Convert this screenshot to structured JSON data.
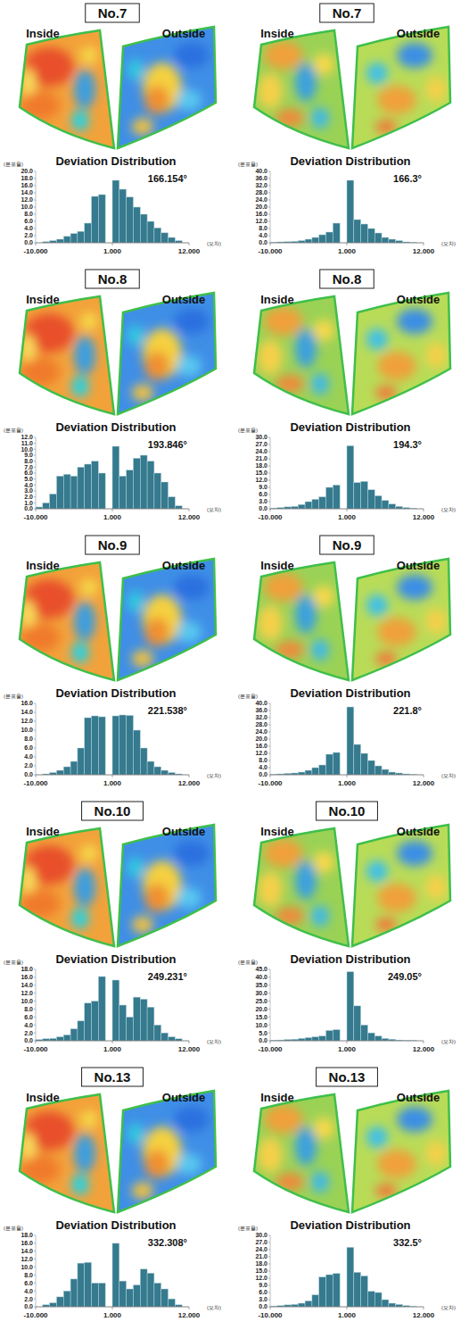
{
  "chart_data": [
    {
      "type": "histogram",
      "title": "No.7",
      "subtitle": "Deviation Distribution",
      "annotations": [
        "Inside",
        "Outside",
        "166.154°"
      ],
      "x_label": "(오차)",
      "y_label": "(분포율)",
      "color": "#357a8e",
      "grid": false,
      "bins": [
        -10,
        -9,
        -8,
        -7,
        -6,
        -5,
        -4,
        -3,
        -2,
        -1,
        0,
        1,
        2,
        3,
        4,
        5,
        6,
        7,
        8,
        9,
        10,
        11,
        12
      ],
      "values": [
        0,
        0.3,
        0.6,
        1,
        1.8,
        2.6,
        3.2,
        5.5,
        13,
        13.5,
        0,
        17.5,
        15,
        12.8,
        10,
        8,
        6,
        4.2,
        2.8,
        1.5,
        0.6,
        0
      ],
      "xlim": [
        -10,
        12
      ],
      "xticks": [
        {
          "value": -10,
          "label": "-10.000"
        },
        {
          "value": 1,
          "label": "1.000"
        },
        {
          "value": 12,
          "label": "12.000"
        }
      ],
      "ylim": [
        0,
        20
      ],
      "yticks": [
        {
          "value": 0,
          "label": "0.0"
        },
        {
          "value": 2,
          "label": "2.0"
        },
        {
          "value": 4,
          "label": "4.0"
        },
        {
          "value": 6,
          "label": "6.0"
        },
        {
          "value": 8,
          "label": "8.0"
        },
        {
          "value": 10,
          "label": "10.0"
        },
        {
          "value": 12,
          "label": "12.0"
        },
        {
          "value": 14,
          "label": "14.0"
        },
        {
          "value": 16,
          "label": "16.0"
        },
        {
          "value": 18,
          "label": "18.0"
        },
        {
          "value": 20,
          "label": "20.0"
        }
      ]
    },
    {
      "type": "histogram",
      "title": "No.7",
      "subtitle": "Deviation Distribution",
      "annotations": [
        "Inside",
        "Outside",
        "166.3°"
      ],
      "x_label": "(오차)",
      "y_label": "(분포율)",
      "color": "#357a8e",
      "grid": false,
      "bins": [
        -10,
        -9,
        -8,
        -7,
        -6,
        -5,
        -4,
        -3,
        -2,
        -1,
        0,
        1,
        2,
        3,
        4,
        5,
        6,
        7,
        8,
        9,
        10,
        11,
        12
      ],
      "values": [
        0.3,
        0.5,
        0.6,
        0.8,
        1.2,
        2,
        3,
        4.5,
        6,
        11,
        0,
        35,
        13,
        10.5,
        8,
        5.5,
        3,
        2,
        1.2,
        0.5,
        0.2,
        0
      ],
      "xlim": [
        -10,
        12
      ],
      "xticks": [
        {
          "value": -10,
          "label": "-10.000"
        },
        {
          "value": 1,
          "label": "1.000"
        },
        {
          "value": 12,
          "label": "12.000"
        }
      ],
      "ylim": [
        0,
        40
      ],
      "yticks": [
        {
          "value": 0,
          "label": "0.0"
        },
        {
          "value": 4,
          "label": "4.0"
        },
        {
          "value": 8,
          "label": "8.0"
        },
        {
          "value": 12,
          "label": "12.0"
        },
        {
          "value": 16,
          "label": "16.0"
        },
        {
          "value": 20,
          "label": "20.0"
        },
        {
          "value": 24,
          "label": "24.0"
        },
        {
          "value": 28,
          "label": "28.0"
        },
        {
          "value": 32,
          "label": "32.0"
        },
        {
          "value": 36,
          "label": "36.0"
        },
        {
          "value": 40,
          "label": "40.0"
        }
      ]
    },
    {
      "type": "histogram",
      "title": "No.8",
      "subtitle": "Deviation Distribution",
      "annotations": [
        "Inside",
        "Outside",
        "193.846°"
      ],
      "x_label": "(오차)",
      "y_label": "(분포율)",
      "color": "#357a8e",
      "grid": false,
      "bins": [
        -10,
        -9,
        -8,
        -7,
        -6,
        -5,
        -4,
        -3,
        -2,
        -1,
        0,
        1,
        2,
        3,
        4,
        5,
        6,
        7,
        8,
        9,
        10,
        11,
        12
      ],
      "values": [
        0.3,
        1,
        2.5,
        5.5,
        5.8,
        5.5,
        7,
        7.5,
        8,
        6,
        0,
        10.5,
        5.5,
        6.5,
        8.5,
        9,
        8,
        6,
        4.5,
        2,
        0.5,
        0
      ],
      "xlim": [
        -10,
        12
      ],
      "xticks": [
        {
          "value": -10,
          "label": "-10.000"
        },
        {
          "value": 1,
          "label": "1.000"
        },
        {
          "value": 12,
          "label": "12.000"
        }
      ],
      "ylim": [
        0,
        12
      ],
      "yticks": [
        {
          "value": 0,
          "label": "0.0"
        },
        {
          "value": 1,
          "label": "1.0"
        },
        {
          "value": 2,
          "label": "2.0"
        },
        {
          "value": 3,
          "label": "3.0"
        },
        {
          "value": 4,
          "label": "4.0"
        },
        {
          "value": 5,
          "label": "5.0"
        },
        {
          "value": 6,
          "label": "6.0"
        },
        {
          "value": 7,
          "label": "7.0"
        },
        {
          "value": 8,
          "label": "8.0"
        },
        {
          "value": 9,
          "label": "9.0"
        },
        {
          "value": 10,
          "label": "10.0"
        },
        {
          "value": 11,
          "label": "11.0"
        },
        {
          "value": 12,
          "label": "12.0"
        }
      ]
    },
    {
      "type": "histogram",
      "title": "No.8",
      "subtitle": "Deviation Distribution",
      "annotations": [
        "Inside",
        "Outside",
        "194.3°"
      ],
      "x_label": "(오차)",
      "y_label": "(분포율)",
      "color": "#357a8e",
      "grid": false,
      "bins": [
        -10,
        -9,
        -8,
        -7,
        -6,
        -5,
        -4,
        -3,
        -2,
        -1,
        0,
        1,
        2,
        3,
        4,
        5,
        6,
        7,
        8,
        9,
        10,
        11,
        12
      ],
      "values": [
        0.3,
        0.5,
        0.8,
        1,
        1.8,
        3,
        4,
        5,
        9,
        10,
        0,
        26.5,
        11,
        11.5,
        8,
        5.5,
        3.5,
        2,
        1,
        0.5,
        0.2,
        0
      ],
      "xlim": [
        -10,
        12
      ],
      "xticks": [
        {
          "value": -10,
          "label": "-10.000"
        },
        {
          "value": 1,
          "label": "1.000"
        },
        {
          "value": 12,
          "label": "12.000"
        }
      ],
      "ylim": [
        0,
        30
      ],
      "yticks": [
        {
          "value": 0,
          "label": "0.0"
        },
        {
          "value": 3,
          "label": "3.0"
        },
        {
          "value": 6,
          "label": "6.0"
        },
        {
          "value": 9,
          "label": "9.0"
        },
        {
          "value": 12,
          "label": "12.0"
        },
        {
          "value": 15,
          "label": "15.0"
        },
        {
          "value": 18,
          "label": "18.0"
        },
        {
          "value": 21,
          "label": "21.0"
        },
        {
          "value": 24,
          "label": "24.0"
        },
        {
          "value": 27,
          "label": "27.0"
        },
        {
          "value": 30,
          "label": "30.0"
        }
      ]
    },
    {
      "type": "histogram",
      "title": "No.9",
      "subtitle": "Deviation Distribution",
      "annotations": [
        "Inside",
        "Outside",
        "221.538°"
      ],
      "x_label": "(오차)",
      "y_label": "(분포율)",
      "color": "#357a8e",
      "grid": false,
      "bins": [
        -10,
        -9,
        -8,
        -7,
        -6,
        -5,
        -4,
        -3,
        -2,
        -1,
        0,
        1,
        2,
        3,
        4,
        5,
        6,
        7,
        8,
        9,
        10,
        11,
        12
      ],
      "values": [
        0,
        0.2,
        0.5,
        1,
        1.8,
        3,
        6,
        12.8,
        13.2,
        13,
        0,
        13.2,
        13.4,
        13.3,
        10,
        6,
        3,
        1.8,
        1,
        0.5,
        0.2,
        0
      ],
      "xlim": [
        -10,
        12
      ],
      "xticks": [
        {
          "value": -10,
          "label": "-10.000"
        },
        {
          "value": 1,
          "label": "1.000"
        },
        {
          "value": 12,
          "label": "12.000"
        }
      ],
      "ylim": [
        0,
        16
      ],
      "yticks": [
        {
          "value": 0,
          "label": "0.0"
        },
        {
          "value": 2,
          "label": "2.0"
        },
        {
          "value": 4,
          "label": "4.0"
        },
        {
          "value": 6,
          "label": "6.0"
        },
        {
          "value": 8,
          "label": "8.0"
        },
        {
          "value": 10,
          "label": "10.0"
        },
        {
          "value": 12,
          "label": "12.0"
        },
        {
          "value": 14,
          "label": "14.0"
        },
        {
          "value": 16,
          "label": "16.0"
        }
      ]
    },
    {
      "type": "histogram",
      "title": "No.9",
      "subtitle": "Deviation Distribution",
      "annotations": [
        "Inside",
        "Outside",
        "221.8°"
      ],
      "x_label": "(오차)",
      "y_label": "(분포율)",
      "color": "#357a8e",
      "grid": false,
      "bins": [
        -10,
        -9,
        -8,
        -7,
        -6,
        -5,
        -4,
        -3,
        -2,
        -1,
        0,
        1,
        2,
        3,
        4,
        5,
        6,
        7,
        8,
        9,
        10,
        11,
        12
      ],
      "values": [
        0.3,
        0.5,
        0.8,
        1,
        1.5,
        2.5,
        4,
        5.5,
        11.5,
        12.5,
        0,
        38,
        17,
        12,
        8,
        5,
        3,
        1.5,
        1,
        0.5,
        0.2,
        0
      ],
      "xlim": [
        -10,
        12
      ],
      "xticks": [
        {
          "value": -10,
          "label": "-10.000"
        },
        {
          "value": 1,
          "label": "1.000"
        },
        {
          "value": 12,
          "label": "12.000"
        }
      ],
      "ylim": [
        0,
        40
      ],
      "yticks": [
        {
          "value": 0,
          "label": "0.0"
        },
        {
          "value": 4,
          "label": "4.0"
        },
        {
          "value": 8,
          "label": "8.0"
        },
        {
          "value": 12,
          "label": "12.0"
        },
        {
          "value": 16,
          "label": "16.0"
        },
        {
          "value": 20,
          "label": "20.0"
        },
        {
          "value": 24,
          "label": "24.0"
        },
        {
          "value": 28,
          "label": "28.0"
        },
        {
          "value": 32,
          "label": "32.0"
        },
        {
          "value": 36,
          "label": "36.0"
        },
        {
          "value": 40,
          "label": "40.0"
        }
      ]
    },
    {
      "type": "histogram",
      "title": "No.10",
      "subtitle": "Deviation Distribution",
      "annotations": [
        "Inside",
        "Outside",
        "249.231°"
      ],
      "x_label": "(오차)",
      "y_label": "(분포율)",
      "color": "#357a8e",
      "grid": false,
      "bins": [
        -10,
        -9,
        -8,
        -7,
        -6,
        -5,
        -4,
        -3,
        -2,
        -1,
        0,
        1,
        2,
        3,
        4,
        5,
        6,
        7,
        8,
        9,
        10,
        11,
        12
      ],
      "values": [
        0.3,
        0.5,
        0.6,
        1,
        1.5,
        3,
        5,
        9.5,
        10,
        16.2,
        0,
        15.3,
        9,
        6,
        11,
        10.5,
        8.5,
        4,
        2,
        1,
        0.5,
        0
      ],
      "xlim": [
        -10,
        12
      ],
      "xticks": [
        {
          "value": -10,
          "label": "-10.000"
        },
        {
          "value": 1,
          "label": "1.000"
        },
        {
          "value": 12,
          "label": "12.000"
        }
      ],
      "ylim": [
        0,
        18
      ],
      "yticks": [
        {
          "value": 0,
          "label": "0.0"
        },
        {
          "value": 2,
          "label": "2.0"
        },
        {
          "value": 4,
          "label": "4.0"
        },
        {
          "value": 6,
          "label": "6.0"
        },
        {
          "value": 8,
          "label": "8.0"
        },
        {
          "value": 10,
          "label": "10.0"
        },
        {
          "value": 12,
          "label": "12.0"
        },
        {
          "value": 14,
          "label": "14.0"
        },
        {
          "value": 16,
          "label": "16.0"
        },
        {
          "value": 18,
          "label": "18.0"
        }
      ]
    },
    {
      "type": "histogram",
      "title": "No.10",
      "subtitle": "Deviation Distribution",
      "annotations": [
        "Inside",
        "Outside",
        "249.05°"
      ],
      "x_label": "(오차)",
      "y_label": "(분포율)",
      "color": "#357a8e",
      "grid": false,
      "bins": [
        -10,
        -9,
        -8,
        -7,
        -6,
        -5,
        -4,
        -3,
        -2,
        -1,
        0,
        1,
        2,
        3,
        4,
        5,
        6,
        7,
        8,
        9,
        10,
        11,
        12
      ],
      "values": [
        0.3,
        0.5,
        0.8,
        1,
        1.5,
        2,
        2.5,
        3,
        6.5,
        7,
        0,
        43.5,
        22,
        10,
        5,
        3,
        1.5,
        1,
        0.5,
        0.3,
        0.2,
        0
      ],
      "xlim": [
        -10,
        12
      ],
      "xticks": [
        {
          "value": -10,
          "label": "-10.000"
        },
        {
          "value": 1,
          "label": "1.000"
        },
        {
          "value": 12,
          "label": "12.000"
        }
      ],
      "ylim": [
        0,
        45
      ],
      "yticks": [
        {
          "value": 0,
          "label": "0.0"
        },
        {
          "value": 5,
          "label": "5.0"
        },
        {
          "value": 10,
          "label": "10.0"
        },
        {
          "value": 15,
          "label": "15.0"
        },
        {
          "value": 20,
          "label": "20.0"
        },
        {
          "value": 25,
          "label": "25.0"
        },
        {
          "value": 30,
          "label": "30.0"
        },
        {
          "value": 35,
          "label": "35.0"
        },
        {
          "value": 40,
          "label": "40.0"
        },
        {
          "value": 45,
          "label": "45.0"
        }
      ]
    },
    {
      "type": "histogram",
      "title": "No.13",
      "subtitle": "Deviation Distribution",
      "annotations": [
        "Inside",
        "Outside",
        "332.308°"
      ],
      "x_label": "(오차)",
      "y_label": "(분포율)",
      "color": "#357a8e",
      "grid": false,
      "bins": [
        -10,
        -9,
        -8,
        -7,
        -6,
        -5,
        -4,
        -3,
        -2,
        -1,
        0,
        1,
        2,
        3,
        4,
        5,
        6,
        7,
        8,
        9,
        10,
        11,
        12
      ],
      "values": [
        0,
        0.5,
        1,
        2.5,
        4,
        7,
        11,
        11.2,
        6,
        6,
        0,
        16,
        6.5,
        4.5,
        5.5,
        9.5,
        8.5,
        6,
        4.5,
        2,
        0.5,
        0
      ],
      "xlim": [
        -10,
        12
      ],
      "xticks": [
        {
          "value": -10,
          "label": "-10.000"
        },
        {
          "value": 1,
          "label": "1.000"
        },
        {
          "value": 12,
          "label": "12.000"
        }
      ],
      "ylim": [
        0,
        18
      ],
      "yticks": [
        {
          "value": 0,
          "label": "0.0"
        },
        {
          "value": 2,
          "label": "2.0"
        },
        {
          "value": 4,
          "label": "4.0"
        },
        {
          "value": 6,
          "label": "6.0"
        },
        {
          "value": 8,
          "label": "8.0"
        },
        {
          "value": 10,
          "label": "10.0"
        },
        {
          "value": 12,
          "label": "12.0"
        },
        {
          "value": 14,
          "label": "14.0"
        },
        {
          "value": 16,
          "label": "16.0"
        },
        {
          "value": 18,
          "label": "18.0"
        }
      ]
    },
    {
      "type": "histogram",
      "title": "No.13",
      "subtitle": "Deviation Distribution",
      "annotations": [
        "Inside",
        "Outside",
        "332.5°"
      ],
      "x_label": "(오차)",
      "y_label": "(분포율)",
      "color": "#357a8e",
      "grid": false,
      "bins": [
        -10,
        -9,
        -8,
        -7,
        -6,
        -5,
        -4,
        -3,
        -2,
        -1,
        0,
        1,
        2,
        3,
        4,
        5,
        6,
        7,
        8,
        9,
        10,
        11,
        12
      ],
      "values": [
        0.3,
        0.5,
        0.8,
        1,
        1.5,
        2.5,
        5,
        12.5,
        13.5,
        14,
        0,
        25,
        14.5,
        13,
        6.5,
        6,
        3,
        1.5,
        1,
        0.5,
        0.2,
        0
      ],
      "xlim": [
        -10,
        12
      ],
      "xticks": [
        {
          "value": -10,
          "label": "-10.000"
        },
        {
          "value": 1,
          "label": "1.000"
        },
        {
          "value": 12,
          "label": "12.000"
        }
      ],
      "ylim": [
        0,
        30
      ],
      "yticks": [
        {
          "value": 0,
          "label": "0.0"
        },
        {
          "value": 3,
          "label": "3.0"
        },
        {
          "value": 6,
          "label": "6.0"
        },
        {
          "value": 9,
          "label": "9.0"
        },
        {
          "value": 12,
          "label": "12.0"
        },
        {
          "value": 15,
          "label": "15.0"
        },
        {
          "value": 18,
          "label": "18.0"
        },
        {
          "value": 21,
          "label": "21.0"
        },
        {
          "value": 24,
          "label": "24.0"
        },
        {
          "value": 27,
          "label": "27.0"
        },
        {
          "value": 30,
          "label": "30.0"
        }
      ]
    }
  ]
}
